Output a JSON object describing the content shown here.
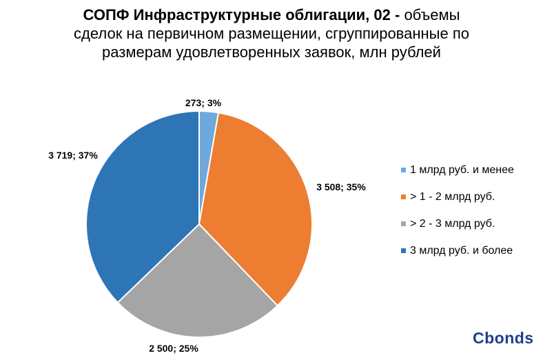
{
  "title": {
    "bold": "СОПФ Инфраструктурные облигации, 02 -",
    "line1_rest": " объемы",
    "line2": "сделок на первичном размещении, сгруппированные по",
    "line3": "размерам удовлетворенных заявок, млн рублей"
  },
  "chart_data": {
    "type": "pie",
    "categories": [
      "1 млрд руб. и менее",
      "> 1 - 2 млрд руб.",
      "> 2 - 3 млрд руб.",
      "3 млрд руб. и более"
    ],
    "values": [
      273,
      3508,
      2500,
      3719
    ],
    "percents": [
      3,
      35,
      25,
      37
    ],
    "data_labels": [
      "273; 3%",
      "3 508; 35%",
      "2 500; 25%",
      "3 719; 37%"
    ],
    "colors": [
      "#6fa8dc",
      "#ed7d31",
      "#a5a5a5",
      "#2e75b6"
    ],
    "legend_position": "right"
  },
  "brand": {
    "logo_text": "Cbonds"
  }
}
